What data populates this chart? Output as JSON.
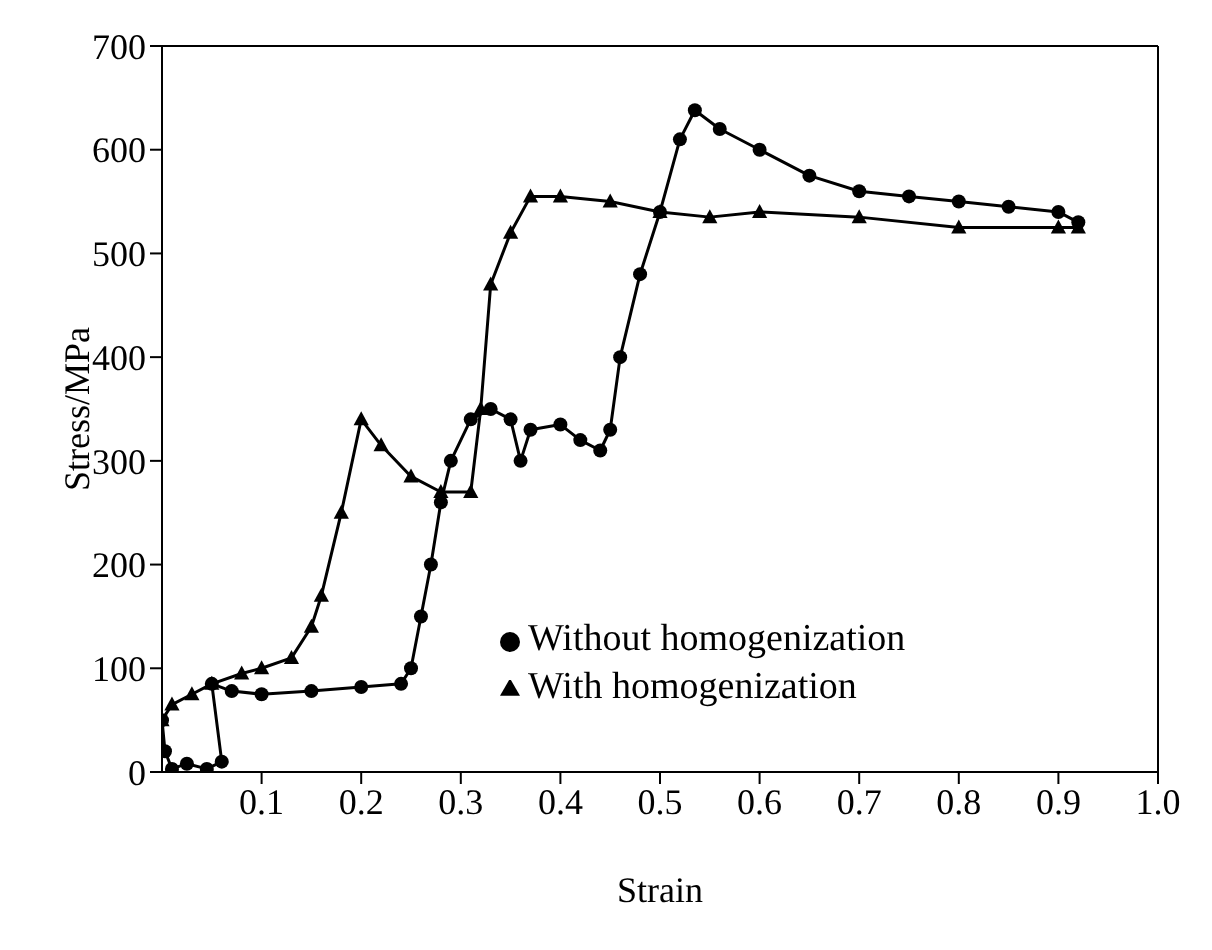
{
  "chart_data": {
    "type": "line",
    "xlabel": "Strain",
    "ylabel": "Stress/MPa",
    "xlim": [
      0,
      1
    ],
    "ylim": [
      0,
      700
    ],
    "xticks": [
      0.1,
      0.2,
      0.3,
      0.4,
      0.5,
      0.6,
      0.7,
      0.8,
      0.9,
      {
        "value": 1,
        "label": "1.0"
      }
    ],
    "yticks": [
      0,
      100,
      200,
      300,
      400,
      500,
      600,
      700
    ],
    "legend": "bottom right",
    "line_style": "solid",
    "series": [
      {
        "name": "Without homogenization",
        "color": "#000000",
        "marker": "circle",
        "x": [
          0,
          0.003,
          0.01,
          0.025,
          0.045,
          0.06,
          0.05,
          0.07,
          0.1,
          0.15,
          0.2,
          0.24,
          0.25,
          0.26,
          0.27,
          0.28,
          0.29,
          0.31,
          0.33,
          0.35,
          0.36,
          0.37,
          0.4,
          0.42,
          0.44,
          0.45,
          0.46,
          0.48,
          0.5,
          0.52,
          0.535,
          0.56,
          0.6,
          0.65,
          0.7,
          0.75,
          0.8,
          0.85,
          0.9,
          0.92
        ],
        "values": [
          50,
          20,
          3,
          8,
          3,
          10,
          85,
          78,
          75,
          78,
          82,
          85,
          100,
          150,
          200,
          260,
          300,
          340,
          350,
          340,
          300,
          330,
          335,
          320,
          310,
          330,
          400,
          480,
          540,
          610,
          638,
          620,
          600,
          575,
          560,
          555,
          550,
          545,
          540,
          530
        ]
      },
      {
        "name": "With homogenization",
        "color": "#000000",
        "marker": "triangle",
        "x": [
          0,
          0.01,
          0.03,
          0.05,
          0.08,
          0.1,
          0.13,
          0.15,
          0.16,
          0.18,
          0.2,
          0.22,
          0.25,
          0.28,
          0.31,
          0.32,
          0.33,
          0.35,
          0.37,
          0.4,
          0.45,
          0.5,
          0.55,
          0.6,
          0.7,
          0.8,
          0.9,
          0.92
        ],
        "values": [
          50,
          65,
          75,
          85,
          95,
          100,
          110,
          140,
          170,
          250,
          340,
          315,
          285,
          270,
          270,
          350,
          470,
          520,
          555,
          555,
          550,
          540,
          535,
          540,
          535,
          525,
          525,
          525
        ]
      }
    ]
  }
}
